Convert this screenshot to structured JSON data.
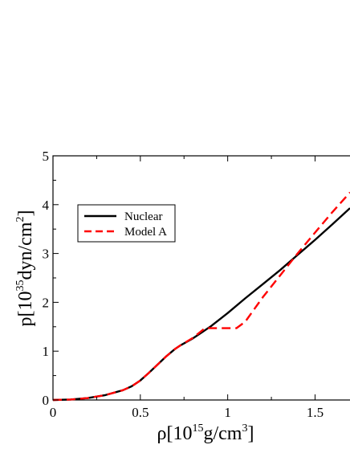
{
  "chart_data": {
    "type": "line",
    "title": "",
    "xlabel": {
      "pre": "ρ[10",
      "sup1": "15",
      "mid": "g/cm",
      "sup2": "3",
      "post": "]"
    },
    "ylabel": {
      "pre": "p[10",
      "sup1": "35",
      "mid": "dyn/cm",
      "sup2": "2",
      "post": "]"
    },
    "xlim": [
      0,
      1.7
    ],
    "ylim": [
      0,
      5
    ],
    "xticks": [
      0,
      0.5,
      1,
      1.5
    ],
    "xtick_labels": [
      "0",
      "0.5",
      "1",
      "1.5"
    ],
    "yticks": [
      0,
      1,
      2,
      3,
      4,
      5
    ],
    "ytick_labels": [
      "0",
      "1",
      "2",
      "3",
      "4",
      "5"
    ],
    "grid": false,
    "legend_position": "upper-left",
    "series": [
      {
        "name": "Nuclear",
        "color": "#000000",
        "dash": "solid",
        "x": [
          0,
          0.1,
          0.2,
          0.3,
          0.4,
          0.45,
          0.5,
          0.55,
          0.6,
          0.65,
          0.7,
          0.73,
          0.8,
          0.9,
          1.0,
          1.1,
          1.2,
          1.3,
          1.4,
          1.5,
          1.6,
          1.7
        ],
        "y": [
          0,
          0.01,
          0.04,
          0.1,
          0.2,
          0.28,
          0.4,
          0.56,
          0.73,
          0.9,
          1.05,
          1.12,
          1.26,
          1.5,
          1.78,
          2.08,
          2.37,
          2.66,
          2.97,
          3.28,
          3.6,
          3.93
        ]
      },
      {
        "name": "Model A",
        "color": "#ff0000",
        "dash": "dashed",
        "x": [
          0,
          0.1,
          0.2,
          0.3,
          0.4,
          0.45,
          0.5,
          0.55,
          0.6,
          0.65,
          0.7,
          0.73,
          0.8,
          0.87,
          0.95,
          1.0,
          1.05,
          1.1,
          1.2,
          1.3,
          1.4,
          1.5,
          1.6,
          1.7
        ],
        "y": [
          0,
          0.01,
          0.04,
          0.1,
          0.2,
          0.28,
          0.4,
          0.56,
          0.73,
          0.9,
          1.05,
          1.12,
          1.27,
          1.47,
          1.47,
          1.47,
          1.47,
          1.6,
          2.1,
          2.55,
          3.0,
          3.43,
          3.85,
          4.25
        ]
      }
    ]
  }
}
